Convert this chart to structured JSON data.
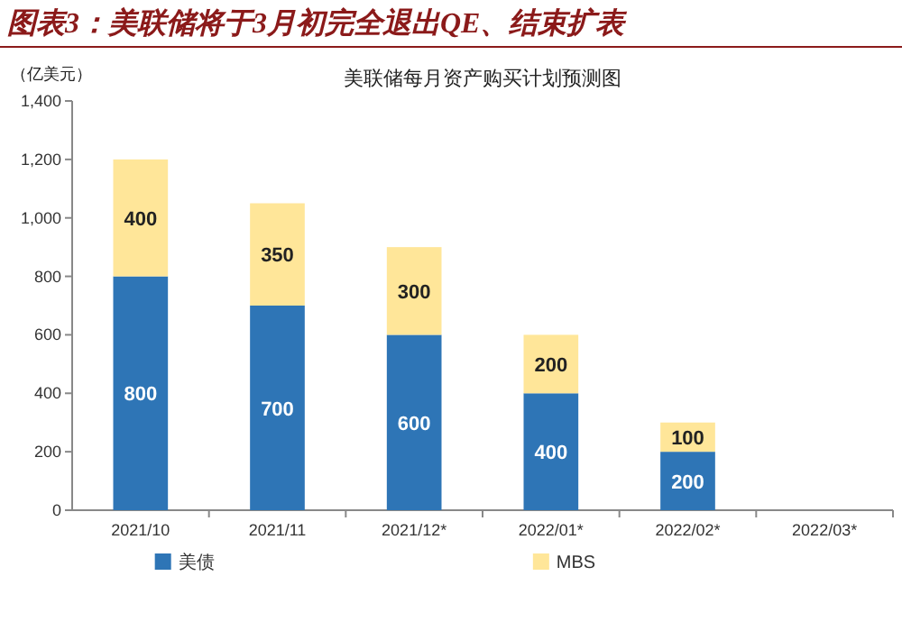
{
  "chart_data": {
    "type": "bar",
    "title": "图表3：美联储将于3月初完全退出QE、结束扩表",
    "subtitle": "美联储每月资产购买计划预测图",
    "ylabel": "（亿美元）",
    "categories": [
      "2021/10",
      "2021/11",
      "2021/12*",
      "2022/01*",
      "2022/02*",
      "2022/03*"
    ],
    "series": [
      {
        "name": "美债",
        "color": "#2e75b6",
        "values": [
          800,
          700,
          600,
          400,
          200,
          null
        ]
      },
      {
        "name": "MBS",
        "color": "#ffe699",
        "values": [
          400,
          350,
          300,
          200,
          100,
          null
        ]
      }
    ],
    "stacked": true,
    "data_labels": true,
    "legend": "bottom",
    "ylim": [
      0,
      1400
    ],
    "yticks": [
      0,
      200,
      400,
      600,
      800,
      {
        "value": 1000,
        "label": "1,000"
      },
      {
        "value": 1200,
        "label": "1,200"
      },
      {
        "value": 1400,
        "label": "1,400"
      }
    ]
  }
}
